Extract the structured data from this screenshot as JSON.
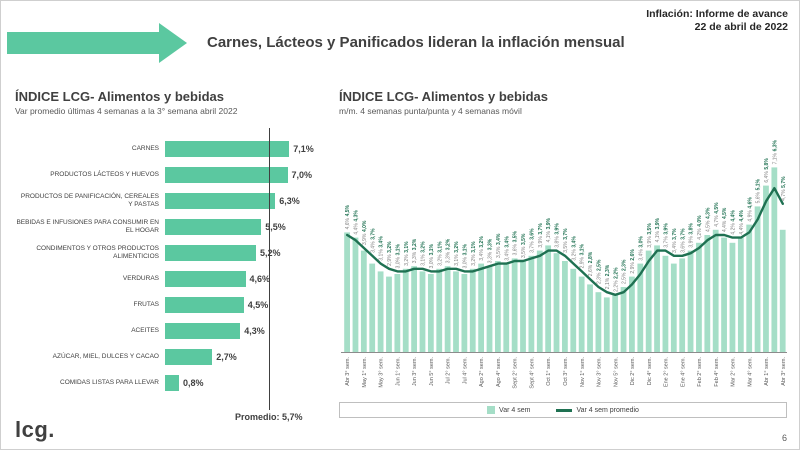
{
  "header": {
    "title": "Carnes, Lácteos y Panificados lideran la inflación mensual",
    "report_label": "Inflación: Informe de avance",
    "report_date": "22 de abril de 2022"
  },
  "footer": {
    "logo": "lcg.",
    "page_number": "6"
  },
  "colors": {
    "accent": "#5BC8A0",
    "bar_light": "#A5DEC7",
    "line_dark": "#1F7152",
    "title_text": "#404040"
  },
  "chart_data": [
    {
      "type": "bar",
      "orientation": "horizontal",
      "title": "ÍNDICE LCG- Alimentos y bebidas",
      "subtitle": "Var promedio últimas 4 semanas a la 3° semana abril 2022",
      "categories": [
        "CARNES",
        "PRODUCTOS LÁCTEOS Y HUEVOS",
        "PRODUCTOS DE PANIFICACIÓN, CEREALES Y PASTAS",
        "BEBIDAS E INFUSIONES PARA CONSUMIR EN EL HOGAR",
        "CONDIMENTOS Y OTROS PRODUCTOS ALIMENTICIOS",
        "VERDURAS",
        "FRUTAS",
        "ACEITES",
        "AZÚCAR, MIEL, DULCES Y CACAO",
        "COMIDAS LISTAS PARA LLEVAR"
      ],
      "values": [
        7.1,
        7.0,
        6.3,
        5.5,
        5.2,
        4.6,
        4.5,
        4.3,
        2.7,
        0.8
      ],
      "average": {
        "value": 5.7,
        "label": "Promedio: 5,7%"
      },
      "xlim": [
        0,
        8
      ],
      "grid": false
    },
    {
      "type": "bar+line",
      "title": "ÍNDICE LCG- Alimentos y bebidas",
      "subtitle": "m/m. 4 semanas punta/punta y 4 semanas móvil",
      "ylim": [
        0,
        8
      ],
      "grid": false,
      "legend_position": "bottom",
      "tick_labels": [
        "Abr 3° sem.",
        "May 1° sem.",
        "May 3° sem.",
        "Jun 1° sem.",
        "Jun 3° sem.",
        "Jun 5° sem.",
        "Jul 2° sem.",
        "Jul 4° sem.",
        "Ago 2° sem.",
        "Ago 4° sem.",
        "Sept 2° sem.",
        "Sept 4° sem.",
        "Oct 1° sem.",
        "Oct 3° sem.",
        "Nov 1° sem.",
        "Nov 3° sem.",
        "Nov 5° sem.",
        "Dic 2° sem.",
        "Dic 4° sem.",
        "Ene 2° sem.",
        "Ene 4° sem.",
        "Feb 2° sem.",
        "Feb 4° sem.",
        "Mar 2° sem.",
        "Mar 4° sem.",
        "Abr 1° sem.",
        "Abr 3° sem."
      ],
      "series": [
        {
          "name": "Var 4 sem",
          "type": "bar",
          "color": "#A5DEC7",
          "values": [
            4.6,
            4.4,
            3.9,
            3.4,
            3.1,
            2.9,
            3.0,
            3.2,
            3.3,
            3.1,
            3.0,
            3.2,
            3.3,
            3.1,
            3.0,
            3.2,
            3.4,
            3.3,
            3.5,
            3.4,
            3.6,
            3.5,
            3.7,
            3.9,
            4.1,
            3.8,
            3.5,
            3.2,
            2.9,
            2.6,
            2.3,
            2.1,
            2.2,
            2.5,
            2.9,
            3.4,
            3.9,
            4.1,
            3.7,
            3.4,
            3.6,
            3.9,
            4.2,
            4.5,
            4.7,
            4.4,
            4.2,
            4.4,
            4.9,
            5.6,
            6.4,
            7.1,
            4.7
          ]
        },
        {
          "name": "Var 4 sem promedio",
          "type": "line",
          "color": "#1F7152",
          "values": [
            4.5,
            4.3,
            4.0,
            3.7,
            3.4,
            3.2,
            3.1,
            3.1,
            3.2,
            3.2,
            3.1,
            3.1,
            3.2,
            3.2,
            3.1,
            3.1,
            3.2,
            3.3,
            3.4,
            3.4,
            3.5,
            3.5,
            3.6,
            3.7,
            3.9,
            3.9,
            3.7,
            3.4,
            3.1,
            2.8,
            2.5,
            2.3,
            2.2,
            2.3,
            2.6,
            3.0,
            3.5,
            3.9,
            3.9,
            3.7,
            3.7,
            3.8,
            4.0,
            4.3,
            4.5,
            4.5,
            4.4,
            4.4,
            4.6,
            5.1,
            5.8,
            6.3,
            5.7
          ]
        }
      ]
    }
  ]
}
